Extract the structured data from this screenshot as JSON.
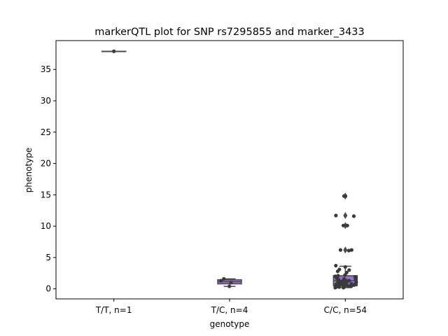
{
  "chart_data": {
    "type": "box",
    "title": "markerQTL plot for SNP rs7295855 and marker_3433",
    "xlabel": "genotype",
    "ylabel": "phenotype",
    "ylim": [
      -1.6,
      39.6
    ],
    "yticks": [
      0,
      5,
      10,
      15,
      20,
      25,
      30,
      35
    ],
    "ytick_labels": [
      "0",
      "5",
      "10",
      "15",
      "20",
      "25",
      "30",
      "35"
    ],
    "grid": false,
    "categories": [
      "T/T, n=1",
      "T/C, n=4",
      "C/C, n=54"
    ],
    "colors": {
      "box_fill": "#9b6fd1",
      "box_edge": "#4a4a4a",
      "median": "#4a4a4a",
      "points": "#3a3a3a",
      "outliers": "#4a4a4a"
    },
    "boxes": [
      {
        "category": "T/T, n=1",
        "q1": 37.9,
        "median": 37.9,
        "q3": 37.9,
        "whisker_low": 37.9,
        "whisker_high": 37.9,
        "outliers": []
      },
      {
        "category": "T/C, n=4",
        "q1": 0.8,
        "median": 1.15,
        "q3": 1.45,
        "whisker_low": 0.4,
        "whisker_high": 1.6,
        "outliers": []
      },
      {
        "category": "C/C, n=54",
        "q1": 0.5,
        "median": 1.3,
        "q3": 2.1,
        "whisker_low": 0.2,
        "whisker_high": 3.6,
        "outliers": [
          6.2,
          10.1,
          11.7,
          14.8
        ]
      }
    ],
    "points": [
      {
        "category": "T/T, n=1",
        "values": [
          37.9
        ]
      },
      {
        "category": "T/C, n=4",
        "values": [
          0.4,
          1.0,
          1.3,
          1.6
        ]
      },
      {
        "category": "C/C, n=54",
        "values": [
          14.8,
          14.8,
          11.7,
          11.6,
          10.1,
          10.1,
          6.2,
          6.2,
          6.1,
          3.7,
          3.5,
          3.1,
          3.0,
          2.8,
          2.6,
          2.2,
          2.1,
          2.0,
          1.9,
          1.8,
          1.7,
          1.6,
          1.5,
          1.5,
          1.4,
          1.3,
          1.3,
          1.2,
          1.1,
          1.1,
          1.0,
          1.0,
          0.9,
          0.9,
          0.8,
          0.8,
          0.8,
          0.7,
          0.7,
          0.7,
          0.6,
          0.6,
          0.6,
          0.5,
          0.5,
          0.5,
          0.4,
          0.4,
          0.4,
          0.3,
          0.3,
          0.3,
          0.2,
          0.2
        ]
      }
    ]
  }
}
